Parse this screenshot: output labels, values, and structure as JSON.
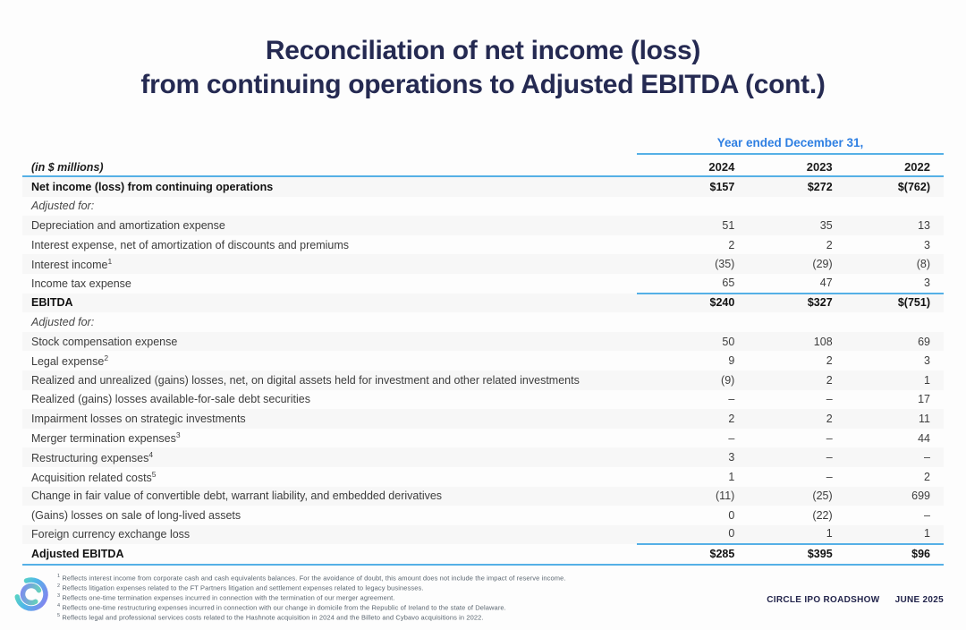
{
  "title": {
    "line1": "Reconciliation of net income (loss)",
    "line2": "from continuing operations to Adjusted EBITDA (cont.)"
  },
  "table": {
    "period_header": "Year ended December 31,",
    "unit_label": "(in $ millions)",
    "years": [
      "2024",
      "2023",
      "2022"
    ],
    "rows": [
      {
        "label": "Net income (loss) from continuing operations",
        "values": [
          "$157",
          "$272",
          "$(762)"
        ],
        "style": "total"
      },
      {
        "label": "Adjusted for:",
        "values": [
          "",
          "",
          ""
        ],
        "style": "section"
      },
      {
        "label": "Depreciation and amortization expense",
        "values": [
          "51",
          "35",
          "13"
        ],
        "style": "normal"
      },
      {
        "label": "Interest expense, net of amortization of discounts and premiums",
        "values": [
          "2",
          "2",
          "3"
        ],
        "style": "normal"
      },
      {
        "label": "Interest income",
        "sup": "1",
        "values": [
          "(35)",
          "(29)",
          "(8)"
        ],
        "style": "normal"
      },
      {
        "label": "Income tax expense",
        "values": [
          "65",
          "47",
          "3"
        ],
        "style": "normal",
        "rule_below": true
      },
      {
        "label": "EBITDA",
        "values": [
          "$240",
          "$327",
          "$(751)"
        ],
        "style": "total"
      },
      {
        "label": "Adjusted for:",
        "values": [
          "",
          "",
          ""
        ],
        "style": "section"
      },
      {
        "label": "Stock compensation expense",
        "values": [
          "50",
          "108",
          "69"
        ],
        "style": "normal"
      },
      {
        "label": "Legal expense",
        "sup": "2",
        "values": [
          "9",
          "2",
          "3"
        ],
        "style": "normal"
      },
      {
        "label": "Realized and unrealized (gains) losses, net, on digital assets held for investment and other related investments",
        "values": [
          "(9)",
          "2",
          "1"
        ],
        "style": "normal"
      },
      {
        "label": "Realized (gains) losses available-for-sale debt securities",
        "values": [
          "–",
          "–",
          "17"
        ],
        "style": "normal"
      },
      {
        "label": "Impairment losses on strategic investments",
        "values": [
          "2",
          "2",
          "11"
        ],
        "style": "normal"
      },
      {
        "label": "Merger termination expenses",
        "sup": "3",
        "values": [
          "–",
          "–",
          "44"
        ],
        "style": "normal"
      },
      {
        "label": "Restructuring expenses",
        "sup": "4",
        "values": [
          "3",
          "–",
          "–"
        ],
        "style": "normal"
      },
      {
        "label": "Acquisition related costs",
        "sup": "5",
        "values": [
          "1",
          "–",
          "2"
        ],
        "style": "normal"
      },
      {
        "label": "Change in fair value of convertible debt, warrant liability, and embedded derivatives",
        "values": [
          "(11)",
          "(25)",
          "699"
        ],
        "style": "normal"
      },
      {
        "label": "(Gains) losses on sale of long-lived assets",
        "values": [
          "0",
          "(22)",
          "–"
        ],
        "style": "normal"
      },
      {
        "label": "Foreign currency exchange loss",
        "values": [
          "0",
          "1",
          "1"
        ],
        "style": "normal",
        "rule_below": true
      },
      {
        "label": "Adjusted EBITDA",
        "values": [
          "$285",
          "$395",
          "$96"
        ],
        "style": "total",
        "full_rule_below": true
      }
    ]
  },
  "footnotes": [
    {
      "sup": "1",
      "text": "Reflects interest income from corporate cash and cash equivalents balances. For the avoidance of doubt, this amount does not include the impact of reserve income."
    },
    {
      "sup": "2",
      "text": "Reflects litigation expenses related to the FT Partners litigation and settlement expenses related to legacy businesses."
    },
    {
      "sup": "3",
      "text": "Reflects one-time termination expenses incurred in connection with the termination of our merger agreement."
    },
    {
      "sup": "4",
      "text": "Reflects one-time restructuring expenses incurred in connection with our change in domicile from the Republic of Ireland to the state of Delaware."
    },
    {
      "sup": "5",
      "text": "Reflects legal and professional services costs related to the Hashnote acquisition in 2024 and the Billeto and Cybavo acquisitions in 2022."
    }
  ],
  "footer": {
    "brand": "CIRCLE IPO ROADSHOW",
    "date": "JUNE 2025",
    "logo_icon": "circle-logo"
  },
  "colors": {
    "title_navy": "#252a52",
    "accent_blue": "#2e7fe2",
    "rule_blue": "#55b0e6",
    "logo_green": "#5fe3ae",
    "logo_purple": "#8b7bf0",
    "footnote_gray": "#5b6670"
  }
}
